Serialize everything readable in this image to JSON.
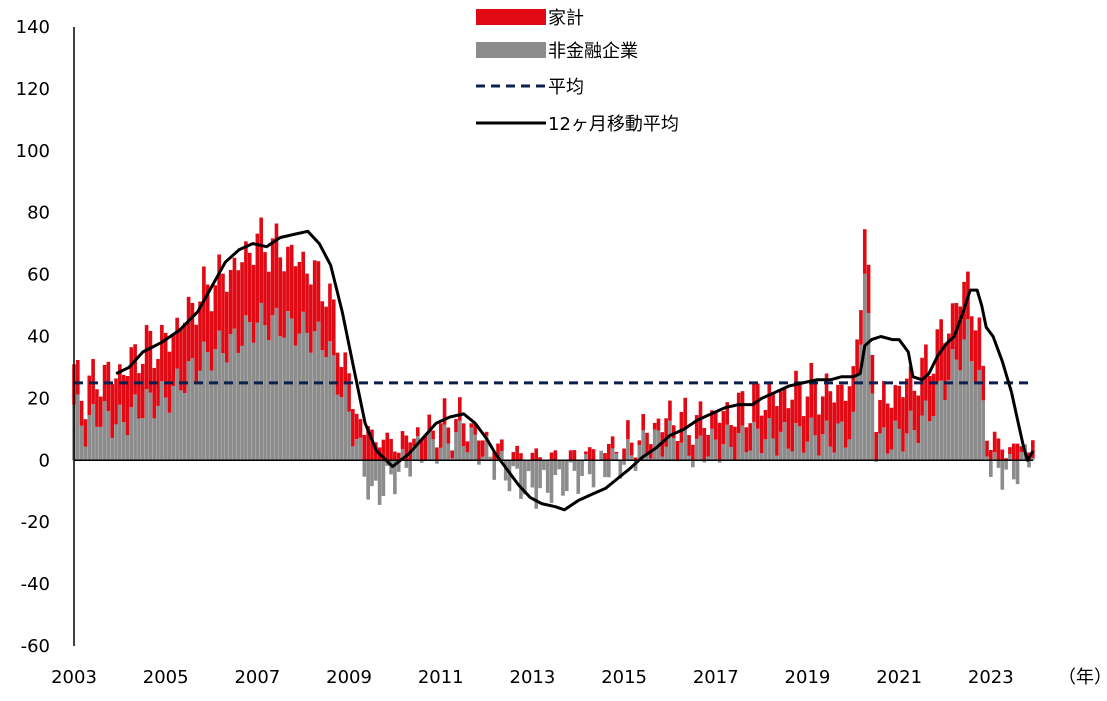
{
  "chart_data": {
    "type": "bar",
    "stacked": true,
    "x_range": [
      2003,
      2023.92
    ],
    "ylim": [
      -60,
      140
    ],
    "yticks": [
      140,
      120,
      100,
      80,
      60,
      40,
      20,
      0,
      -20,
      -40,
      -60
    ],
    "xticks": [
      2003,
      2005,
      2007,
      2009,
      2011,
      2013,
      2015,
      2017,
      2019,
      2021,
      2023
    ],
    "x_unit_label": "（年）",
    "legend_position": "top-center",
    "grid": false,
    "colors": {
      "household": "#e00914",
      "nonfinancial": "#8c8c8c",
      "average": "#0d1f4d",
      "moving_avg": "#000000"
    },
    "legend": [
      {
        "label": "家計",
        "style": "bar",
        "color": "#e00914"
      },
      {
        "label": "非金融企業",
        "style": "bar",
        "color": "#8c8c8c"
      },
      {
        "label": "平均",
        "style": "dashed",
        "color": "#0d1f4d"
      },
      {
        "label": "12ヶ月移動平均",
        "style": "line",
        "color": "#000000"
      }
    ],
    "average_value": 25,
    "anchors": {
      "nonfinancial": [
        [
          2003.0,
          18
        ],
        [
          2003.25,
          10
        ],
        [
          2003.5,
          15
        ],
        [
          2004.0,
          12
        ],
        [
          2004.5,
          18
        ],
        [
          2005.0,
          20
        ],
        [
          2005.5,
          28
        ],
        [
          2006.0,
          35
        ],
        [
          2006.5,
          38
        ],
        [
          2007.0,
          45
        ],
        [
          2007.5,
          44
        ],
        [
          2008.0,
          42
        ],
        [
          2008.5,
          38
        ],
        [
          2009.0,
          15
        ],
        [
          2009.5,
          -12
        ],
        [
          2010.0,
          -5
        ],
        [
          2010.5,
          3
        ],
        [
          2011.0,
          5
        ],
        [
          2011.5,
          8
        ],
        [
          2012.0,
          2
        ],
        [
          2012.5,
          -5
        ],
        [
          2013.0,
          -10
        ],
        [
          2013.5,
          -8
        ],
        [
          2014.0,
          -5
        ],
        [
          2014.5,
          -2
        ],
        [
          2015.0,
          0
        ],
        [
          2015.5,
          5
        ],
        [
          2016.0,
          7
        ],
        [
          2016.5,
          3
        ],
        [
          2017.0,
          5
        ],
        [
          2017.5,
          6
        ],
        [
          2018.0,
          8
        ],
        [
          2018.5,
          7
        ],
        [
          2019.0,
          8
        ],
        [
          2019.5,
          7
        ],
        [
          2020.0,
          10
        ],
        [
          2020.25,
          60
        ],
        [
          2020.5,
          5
        ],
        [
          2021.0,
          8
        ],
        [
          2021.5,
          12
        ],
        [
          2022.0,
          25
        ],
        [
          2022.5,
          40
        ],
        [
          2022.75,
          25
        ],
        [
          2023.0,
          -3
        ],
        [
          2023.5,
          -4
        ],
        [
          2023.92,
          4
        ]
      ],
      "household": [
        [
          2003.0,
          10
        ],
        [
          2003.5,
          12
        ],
        [
          2004.0,
          16
        ],
        [
          2004.5,
          18
        ],
        [
          2005.0,
          18
        ],
        [
          2005.5,
          20
        ],
        [
          2006.0,
          22
        ],
        [
          2006.5,
          24
        ],
        [
          2007.0,
          26
        ],
        [
          2007.5,
          24
        ],
        [
          2008.0,
          22
        ],
        [
          2008.5,
          18
        ],
        [
          2009.0,
          10
        ],
        [
          2009.5,
          8
        ],
        [
          2010.0,
          5
        ],
        [
          2010.5,
          5
        ],
        [
          2011.0,
          6
        ],
        [
          2011.5,
          5
        ],
        [
          2012.0,
          3
        ],
        [
          2012.5,
          2
        ],
        [
          2013.0,
          1
        ],
        [
          2013.5,
          0.5
        ],
        [
          2014.0,
          1
        ],
        [
          2014.5,
          2
        ],
        [
          2015.0,
          3
        ],
        [
          2015.5,
          4
        ],
        [
          2016.0,
          7
        ],
        [
          2016.5,
          8
        ],
        [
          2017.0,
          9
        ],
        [
          2017.5,
          10
        ],
        [
          2018.0,
          12
        ],
        [
          2018.5,
          14
        ],
        [
          2019.0,
          15
        ],
        [
          2019.5,
          15
        ],
        [
          2020.0,
          14
        ],
        [
          2020.5,
          12
        ],
        [
          2021.0,
          15
        ],
        [
          2021.5,
          16
        ],
        [
          2022.0,
          17
        ],
        [
          2022.5,
          18
        ],
        [
          2022.75,
          14
        ],
        [
          2023.0,
          5
        ],
        [
          2023.5,
          3
        ],
        [
          2023.92,
          3
        ]
      ]
    },
    "moving_average": [
      [
        2003.92,
        28
      ],
      [
        2004.2,
        30
      ],
      [
        2004.5,
        35
      ],
      [
        2004.9,
        38
      ],
      [
        2005.3,
        42
      ],
      [
        2005.7,
        48
      ],
      [
        2006.0,
        56
      ],
      [
        2006.3,
        64
      ],
      [
        2006.6,
        68
      ],
      [
        2006.9,
        70
      ],
      [
        2007.2,
        69
      ],
      [
        2007.5,
        72
      ],
      [
        2007.8,
        73
      ],
      [
        2008.1,
        74
      ],
      [
        2008.35,
        70
      ],
      [
        2008.6,
        63
      ],
      [
        2008.85,
        48
      ],
      [
        2009.1,
        30
      ],
      [
        2009.35,
        12
      ],
      [
        2009.6,
        3
      ],
      [
        2009.95,
        -2
      ],
      [
        2010.3,
        2
      ],
      [
        2010.6,
        7
      ],
      [
        2010.9,
        12
      ],
      [
        2011.2,
        14
      ],
      [
        2011.5,
        15
      ],
      [
        2011.75,
        12
      ],
      [
        2012.0,
        7
      ],
      [
        2012.2,
        2
      ],
      [
        2012.45,
        -3
      ],
      [
        2012.7,
        -8
      ],
      [
        2012.95,
        -12
      ],
      [
        2013.2,
        -14
      ],
      [
        2013.5,
        -15
      ],
      [
        2013.7,
        -16
      ],
      [
        2014.0,
        -13
      ],
      [
        2014.3,
        -11
      ],
      [
        2014.6,
        -9
      ],
      [
        2014.85,
        -6
      ],
      [
        2015.1,
        -3
      ],
      [
        2015.4,
        1
      ],
      [
        2015.7,
        4
      ],
      [
        2016.0,
        8
      ],
      [
        2016.3,
        10
      ],
      [
        2016.6,
        13
      ],
      [
        2016.9,
        15
      ],
      [
        2017.2,
        17
      ],
      [
        2017.5,
        18
      ],
      [
        2017.8,
        18
      ],
      [
        2018.0,
        20
      ],
      [
        2018.3,
        22
      ],
      [
        2018.6,
        24
      ],
      [
        2018.9,
        25
      ],
      [
        2019.2,
        26
      ],
      [
        2019.5,
        26
      ],
      [
        2019.75,
        27
      ],
      [
        2020.0,
        27
      ],
      [
        2020.15,
        28
      ],
      [
        2020.25,
        37
      ],
      [
        2020.4,
        39
      ],
      [
        2020.6,
        40
      ],
      [
        2020.85,
        39
      ],
      [
        2021.0,
        39
      ],
      [
        2021.2,
        35
      ],
      [
        2021.3,
        27
      ],
      [
        2021.5,
        26
      ],
      [
        2021.65,
        28
      ],
      [
        2021.85,
        34
      ],
      [
        2022.05,
        38
      ],
      [
        2022.2,
        40
      ],
      [
        2022.4,
        48
      ],
      [
        2022.55,
        55
      ],
      [
        2022.7,
        55
      ],
      [
        2022.8,
        50
      ],
      [
        2022.9,
        43
      ],
      [
        2023.05,
        40
      ],
      [
        2023.25,
        32
      ],
      [
        2023.45,
        22
      ],
      [
        2023.6,
        12
      ],
      [
        2023.72,
        4
      ],
      [
        2023.8,
        0
      ],
      [
        2023.92,
        3
      ]
    ]
  }
}
